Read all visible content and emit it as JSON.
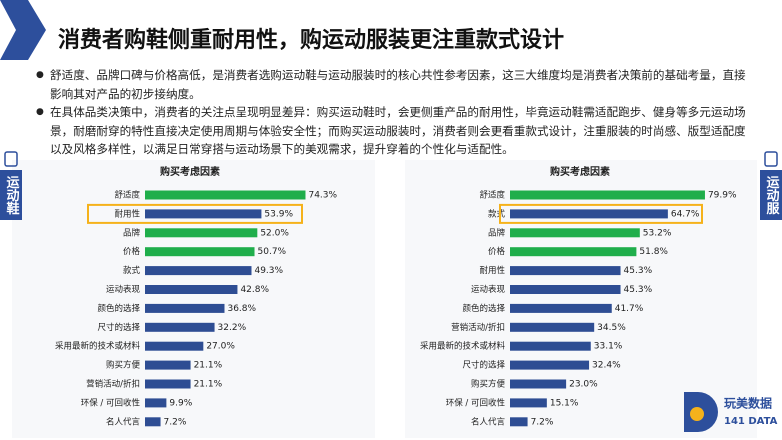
{
  "title": "消费者购鞋侧重耐用性，购运动服装更注重款式设计",
  "bullets": [
    "舒适度、品牌口碑与价格高低，是消费者选购运动鞋与运动服装时的核心共性参考因素，这三大维度均是消费者决策前的基础考量，直接影响其对产品的初步接纳度。",
    "在具体品类决策中，消费者的关注点呈现明显差异：购买运动鞋时，会更侧重产品的耐用性，毕竟运动鞋需适配跑步、健身等多元运动场景，耐磨耐穿的特性直接决定使用周期与体验安全性；而购买运动服装时，消费者则会更看重款式设计，注重服装的时尚感、版型适配度以及风格多样性，以满足日常穿搭与运动场景下的美观需求，提升穿着的个性化与适配性。"
  ],
  "side_labels": [
    "运动鞋",
    "运动服"
  ],
  "logo": {
    "name": "玩美数据",
    "sub": "141 DATA"
  },
  "chart_data": [
    {
      "type": "bar",
      "orientation": "horizontal",
      "title": "购买考虑因素",
      "categories": [
        "舒适度",
        "耐用性",
        "品牌",
        "价格",
        "款式",
        "运动表现",
        "颜色的选择",
        "尺寸的选择",
        "采用最新的技术或材料",
        "购买方便",
        "营销活动/折扣",
        "环保 / 可回收性",
        "名人代言"
      ],
      "values": [
        74.3,
        53.9,
        52.0,
        50.7,
        49.3,
        42.8,
        36.8,
        32.2,
        27.0,
        21.1,
        21.1,
        9.9,
        7.2
      ],
      "value_labels": [
        "74.3%",
        "53.9%",
        "52.0%",
        "50.7%",
        "49.3%",
        "42.8%",
        "36.8%",
        "32.2%",
        "27.0%",
        "21.1%",
        "21.1%",
        "9.9%",
        "7.2%"
      ],
      "colors": [
        "#1fae4b",
        "#2e4d93",
        "#1fae4b",
        "#1fae4b",
        "#2e4d93",
        "#2e4d93",
        "#2e4d93",
        "#2e4d93",
        "#2e4d93",
        "#2e4d93",
        "#2e4d93",
        "#2e4d93",
        "#2e4d93"
      ],
      "xlim": [
        0,
        100
      ],
      "highlight": 1,
      "highlight_color": "#f5b21b"
    },
    {
      "type": "bar",
      "orientation": "horizontal",
      "title": "购买考虑因素",
      "categories": [
        "舒适度",
        "款式",
        "品牌",
        "价格",
        "耐用性",
        "运动表现",
        "颜色的选择",
        "营销活动/折扣",
        "采用最新的技术或材料",
        "尺寸的选择",
        "购买方便",
        "环保 / 可回收性",
        "名人代言"
      ],
      "values": [
        79.9,
        64.7,
        53.2,
        51.8,
        45.3,
        45.3,
        41.7,
        34.5,
        33.1,
        32.4,
        23.0,
        15.1,
        7.2
      ],
      "value_labels": [
        "79.9%",
        "64.7%",
        "53.2%",
        "51.8%",
        "45.3%",
        "45.3%",
        "41.7%",
        "34.5%",
        "33.1%",
        "32.4%",
        "23.0%",
        "15.1%",
        "7.2%"
      ],
      "colors": [
        "#1fae4b",
        "#2e4d93",
        "#1fae4b",
        "#1fae4b",
        "#2e4d93",
        "#2e4d93",
        "#2e4d93",
        "#2e4d93",
        "#2e4d93",
        "#2e4d93",
        "#2e4d93",
        "#2e4d93",
        "#2e4d93"
      ],
      "xlim": [
        0,
        100
      ],
      "highlight": 1,
      "highlight_color": "#f5b21b"
    }
  ]
}
